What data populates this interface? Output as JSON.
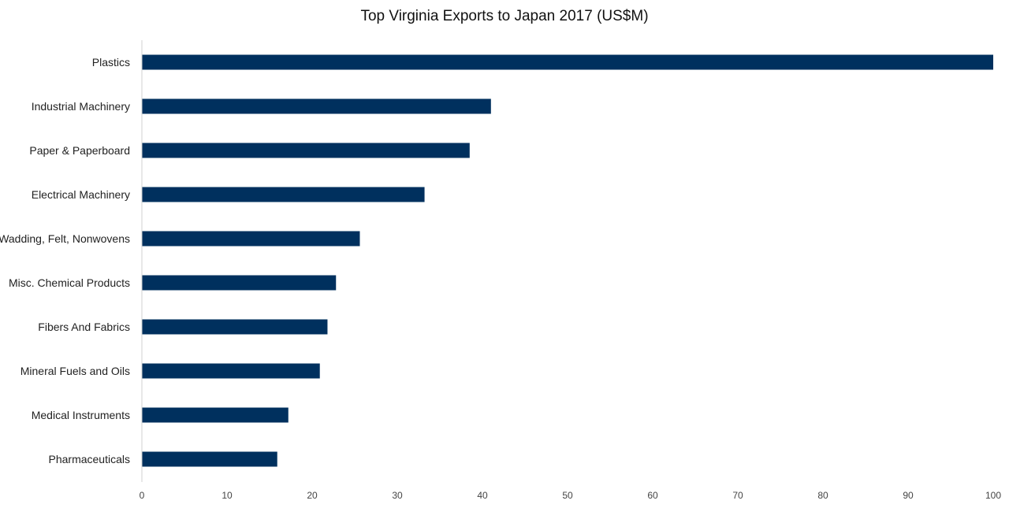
{
  "chart_data": {
    "type": "bar",
    "orientation": "horizontal",
    "title": "Top Virginia Exports to Japan 2017  (US$M)",
    "xlabel": "",
    "ylabel": "",
    "categories": [
      "Plastics",
      "Industrial Machinery",
      "Paper & Paperboard",
      "Electrical Machinery",
      "Wadding, Felt, Nonwovens",
      "Misc. Chemical Products",
      "Fibers And Fabrics",
      "Mineral Fuels and Oils",
      "Medical Instruments",
      "Pharmaceuticals"
    ],
    "values": [
      100,
      41,
      38.5,
      33.2,
      25.6,
      22.8,
      21.8,
      20.9,
      17.2,
      15.9
    ],
    "xlim": [
      0,
      100
    ],
    "xticks": [
      0,
      10,
      20,
      30,
      40,
      50,
      60,
      70,
      80,
      90,
      100
    ],
    "grid": false,
    "legend": "none",
    "bar_color": "#00305e",
    "axis_color": "#d0d0d0"
  }
}
